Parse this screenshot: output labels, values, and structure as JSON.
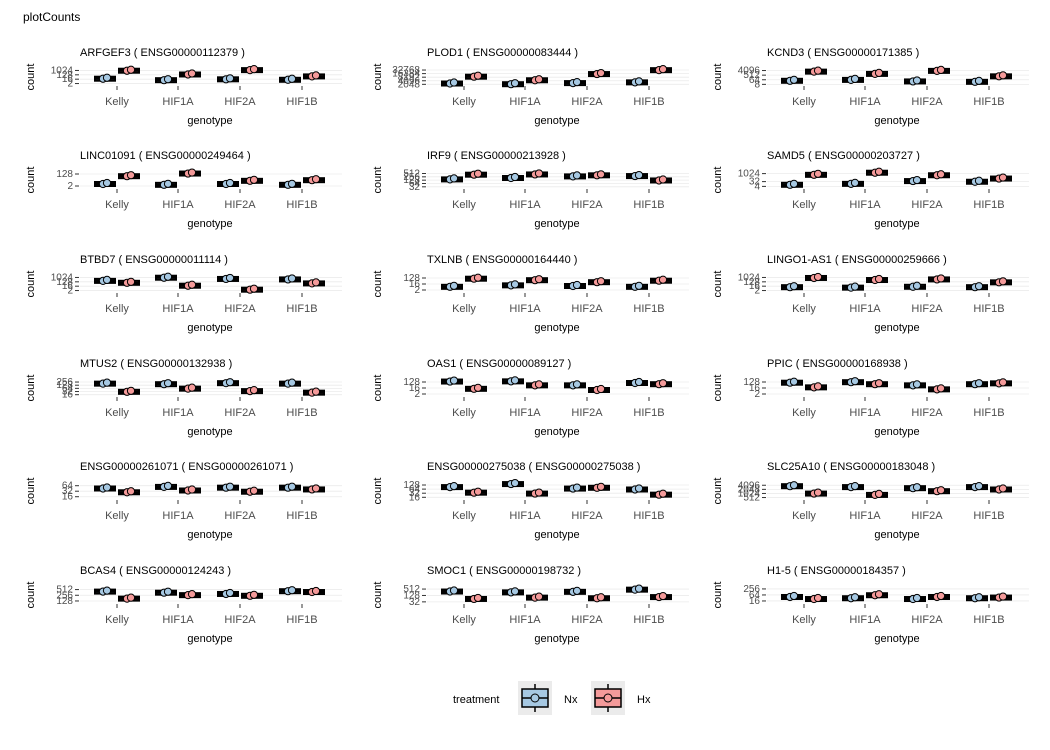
{
  "title": "plotCounts",
  "legend": {
    "title": "treatment",
    "position": "bottom",
    "entries": [
      {
        "label": "Nx",
        "color": "#a6c8e2"
      },
      {
        "label": "Hx",
        "color": "#f49a9a"
      }
    ]
  },
  "chart_data": {
    "type": "box",
    "layout": "6x3 facet grid",
    "scale": "log2",
    "grid": true,
    "xlabel": "genotype",
    "ylabel": "count",
    "categories": [
      "Kelly",
      "HIF1A",
      "HIF2A",
      "HIF1B"
    ],
    "series_names": [
      "Nx",
      "Hx"
    ],
    "colors": {
      "Nx": "#a6c8e2",
      "Hx": "#f49a9a"
    },
    "panels": [
      {
        "title": "ARFGEF3 ( ENSG00000112379 )",
        "ticks": [
          "1024",
          "128",
          "16",
          "2"
        ],
        "ylim": [
          1,
          2048
        ],
        "Nx": [
          20,
          10,
          15,
          12
        ],
        "Hx": [
          900,
          150,
          1200,
          60
        ]
      },
      {
        "title": "PLOD1 ( ENSG00000083444 )",
        "ticks": [
          "32768",
          "16384",
          "8192",
          "4096",
          "2048"
        ],
        "ylim": [
          1800,
          40000
        ],
        "Nx": [
          2400,
          2100,
          2600,
          3000
        ],
        "Hx": [
          9000,
          4500,
          15000,
          32000
        ]
      },
      {
        "title": "KCND3 ( ENSG00000171385 )",
        "ticks": [
          "4096",
          "512",
          "64",
          "8"
        ],
        "ylim": [
          6,
          8192
        ],
        "Nx": [
          40,
          60,
          30,
          25
        ],
        "Hx": [
          2500,
          900,
          3500,
          300
        ]
      },
      {
        "title": "LINC01091 ( ENSG00000249464 )",
        "ticks": [
          "128",
          "2"
        ],
        "ylim": [
          1,
          256
        ],
        "Nx": [
          4,
          3,
          4,
          3
        ],
        "Hx": [
          60,
          150,
          12,
          15
        ]
      },
      {
        "title": "IRF9 ( ENSG00000213928 )",
        "ticks": [
          "512",
          "256",
          "128",
          "64",
          "32"
        ],
        "ylim": [
          25,
          700
        ],
        "Nx": [
          150,
          200,
          280,
          300
        ],
        "Hx": [
          400,
          420,
          350,
          120
        ]
      },
      {
        "title": "SAMD5 ( ENSG00000203727 )",
        "ticks": [
          "1024",
          "32",
          "4"
        ],
        "ylim": [
          2,
          2048
        ],
        "Nx": [
          8,
          12,
          40,
          30
        ],
        "Hx": [
          600,
          1500,
          500,
          120
        ]
      },
      {
        "title": "BTBD7 ( ENSG00000011114 )",
        "ticks": [
          "1024",
          "128",
          "16",
          "2"
        ],
        "ylim": [
          1,
          2048
        ],
        "Nx": [
          200,
          900,
          500,
          400
        ],
        "Hx": [
          80,
          20,
          3,
          60
        ]
      },
      {
        "title": "TXLNB ( ENSG00000164440 )",
        "ticks": [
          "128",
          "16",
          "2"
        ],
        "ylim": [
          1,
          256
        ],
        "Nx": [
          6,
          10,
          8,
          6
        ],
        "Hx": [
          100,
          60,
          30,
          50
        ]
      },
      {
        "title": "LINGO1-AS1 ( ENSG00000259666 )",
        "ticks": [
          "1024",
          "128",
          "16",
          "2"
        ],
        "ylim": [
          1,
          2048
        ],
        "Nx": [
          10,
          8,
          12,
          10
        ],
        "Hx": [
          800,
          300,
          400,
          100
        ]
      },
      {
        "title": "MTUS2 ( ENSG00000132938 )",
        "ticks": [
          "256",
          "128",
          "64",
          "32",
          "16"
        ],
        "ylim": [
          12,
          400
        ],
        "Nx": [
          180,
          160,
          200,
          180
        ],
        "Hx": [
          30,
          60,
          35,
          25
        ]
      },
      {
        "title": "OAS1 ( ENSG00000089127 )",
        "ticks": [
          "128",
          "16",
          "2"
        ],
        "ylim": [
          1,
          256
        ],
        "Nx": [
          150,
          160,
          40,
          90
        ],
        "Hx": [
          12,
          40,
          8,
          60
        ]
      },
      {
        "title": "PPIC ( ENSG00000168938 )",
        "ticks": [
          "128",
          "16",
          "2"
        ],
        "ylim": [
          1,
          256
        ],
        "Nx": [
          100,
          120,
          40,
          60
        ],
        "Hx": [
          20,
          60,
          10,
          80
        ]
      },
      {
        "title": "ENSG00000261071 ( ENSG00000261071 )",
        "ticks": [
          "64",
          "32",
          "16"
        ],
        "ylim": [
          12,
          90
        ],
        "Nx": [
          45,
          55,
          50,
          50
        ],
        "Hx": [
          28,
          35,
          30,
          40
        ]
      },
      {
        "title": "ENSG00000275038 ( ENSG00000275038 )",
        "ticks": [
          "128",
          "64",
          "32",
          "16"
        ],
        "ylim": [
          12,
          180
        ],
        "Nx": [
          90,
          150,
          70,
          60
        ],
        "Hx": [
          35,
          30,
          80,
          25
        ]
      },
      {
        "title": "SLC25A10 ( ENSG00000183048 )",
        "ticks": [
          "4096",
          "2048",
          "1024",
          "512"
        ],
        "ylim": [
          400,
          6000
        ],
        "Nx": [
          3500,
          3000,
          2500,
          3000
        ],
        "Hx": [
          1000,
          800,
          1500,
          2000
        ]
      },
      {
        "title": "BCAS4 ( ENSG00000124243 )",
        "ticks": [
          "512",
          "256",
          "128"
        ],
        "ylim": [
          100,
          700
        ],
        "Nx": [
          400,
          350,
          300,
          420
        ],
        "Hx": [
          170,
          260,
          240,
          380
        ]
      },
      {
        "title": "SMOC1 ( ENSG00000198732 )",
        "ticks": [
          "512",
          "128",
          "32"
        ],
        "ylim": [
          25,
          800
        ],
        "Nx": [
          300,
          250,
          280,
          450
        ],
        "Hx": [
          60,
          80,
          70,
          90
        ]
      },
      {
        "title": "H1-5 ( ENSG00000184357 )",
        "ticks": [
          "256",
          "64",
          "16"
        ],
        "ylim": [
          10,
          400
        ],
        "Nx": [
          40,
          30,
          25,
          30
        ],
        "Hx": [
          25,
          60,
          40,
          35
        ]
      }
    ]
  }
}
